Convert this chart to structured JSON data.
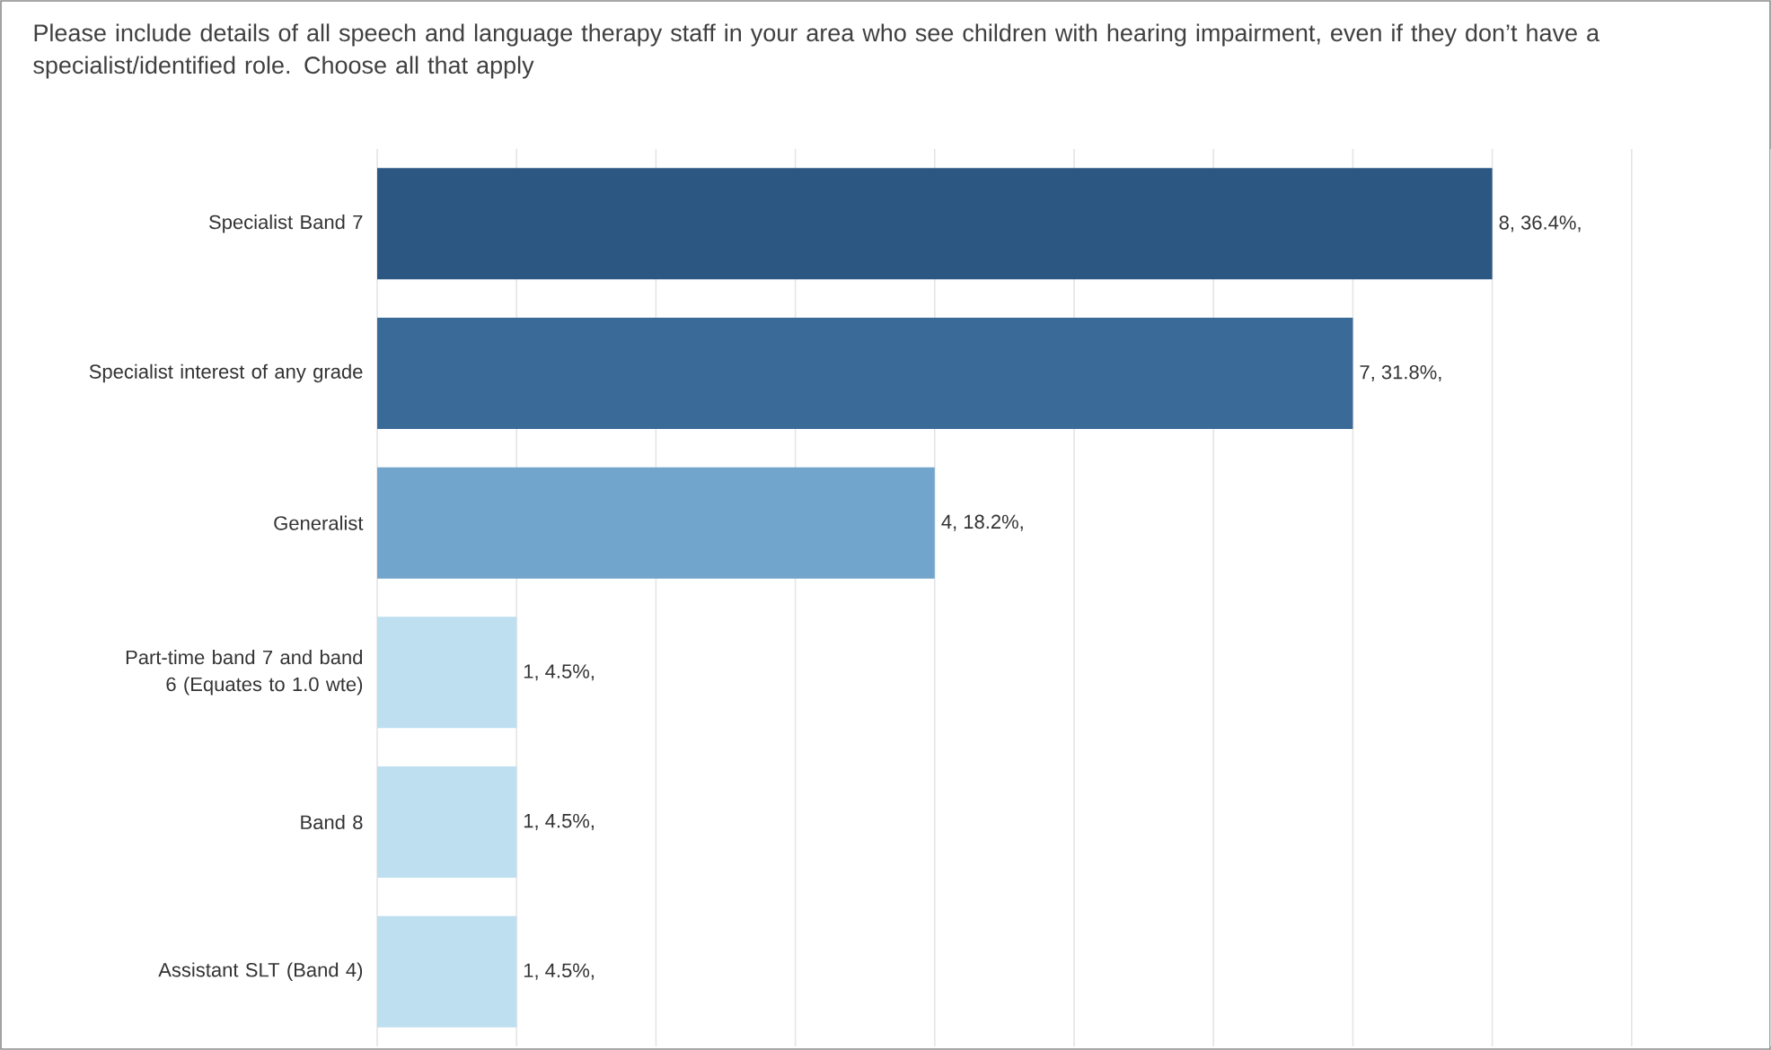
{
  "chart_data": {
    "type": "bar",
    "orientation": "horizontal",
    "title": "Please include details of all speech and language therapy staff in your area who see children with hearing impairment, even if they don’t have a specialist/identified role. Choose all that apply",
    "categories": [
      "Specialist Band 7",
      "Specialist interest of any grade",
      "Generalist",
      "Part-time band 7 and band 6 (Equates to 1.0 wte)",
      "Band 8",
      "Assistant SLT (Band 4)"
    ],
    "values": [
      8,
      7,
      4,
      1,
      1,
      1
    ],
    "colors": [
      "#2b5782",
      "#3a6a97",
      "#72a5cb",
      "#bddff0",
      "#bddff0",
      "#bddff0"
    ],
    "value_labels": [
      "8, 36.4%,",
      "7, 31.8%,",
      "4, 18.2%,",
      "1, 4.5%,",
      "1, 4.5%,",
      "1, 4.5%,"
    ],
    "xlim": [
      0,
      10
    ],
    "xticks": [
      {
        "value": 0,
        "label": null
      },
      {
        "value": 1,
        "label": null
      },
      {
        "value": 2,
        "label": null
      },
      {
        "value": 3,
        "label": null
      },
      {
        "value": 4,
        "label": null
      },
      {
        "value": 5,
        "label": null
      },
      {
        "value": 6,
        "label": null
      },
      {
        "value": 7,
        "label": null
      },
      {
        "value": 8,
        "label": null
      },
      {
        "value": 9,
        "label": null
      },
      {
        "value": 10,
        "label": null
      }
    ],
    "grid": "x",
    "tick_labels": "y"
  }
}
